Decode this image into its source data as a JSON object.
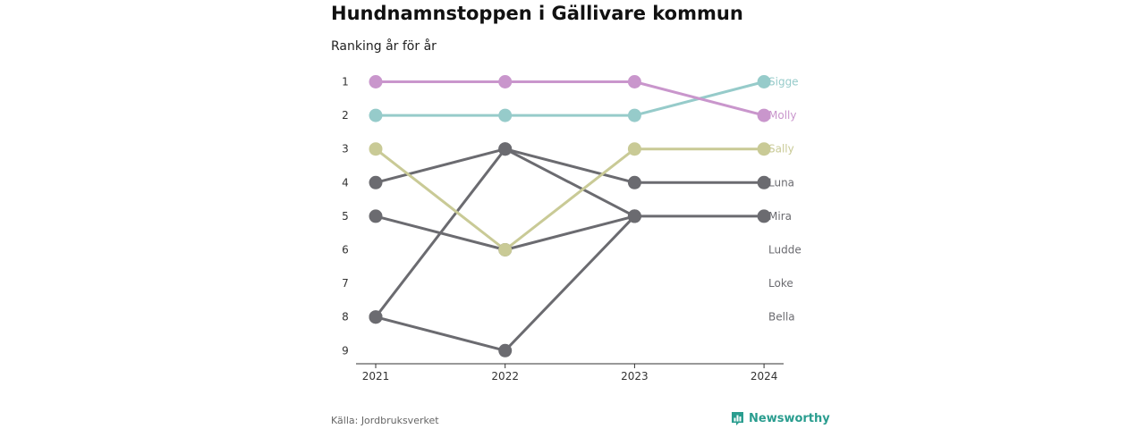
{
  "title": "Hundnamnstoppen i Gällivare kommun",
  "subtitle": "Ranking år för år",
  "source": "Källa: Jordbruksverket",
  "brand": {
    "name": "Newsworthy",
    "color": "#2a9d8f",
    "logo_icon": "chart-bubble-icon"
  },
  "chart_data": {
    "type": "line",
    "title": "Hundnamnstoppen i Gällivare kommun",
    "subtitle": "Ranking år för år",
    "x": [
      "2021",
      "2022",
      "2023",
      "2024"
    ],
    "y_ticks": [
      "1",
      "2",
      "3",
      "4",
      "5",
      "6",
      "7",
      "8",
      "9"
    ],
    "y_range": [
      1,
      9
    ],
    "y_inverted": true,
    "grid": false,
    "legend": "end-labels",
    "series": [
      {
        "name": "Sigge",
        "values": [
          2,
          2,
          2,
          1
        ],
        "color": "#96cbca"
      },
      {
        "name": "Molly",
        "values": [
          1,
          1,
          1,
          2
        ],
        "color": "#c996cc"
      },
      {
        "name": "Sally",
        "values": [
          3,
          6,
          3,
          3
        ],
        "color": "#c9ca96"
      },
      {
        "name": "Luna",
        "values": [
          4,
          3,
          4,
          4
        ],
        "color": "#6b6b70"
      },
      {
        "name": "Mira",
        "values": [
          5,
          6,
          5,
          5
        ],
        "color": "#6b6b70"
      },
      {
        "name": "Ludde",
        "values": [
          8,
          3,
          5,
          null
        ],
        "color": "#6b6b70"
      },
      {
        "name": "Loke",
        "values": [
          8,
          9,
          5,
          null
        ],
        "color": "#6b6b70"
      },
      {
        "name": "Bella",
        "values": [
          null,
          null,
          null,
          null
        ],
        "color": "#6b6b70"
      }
    ],
    "end_labels": [
      {
        "name": "Sigge",
        "rank": 1
      },
      {
        "name": "Molly",
        "rank": 2
      },
      {
        "name": "Sally",
        "rank": 3
      },
      {
        "name": "Luna",
        "rank": 4
      },
      {
        "name": "Mira",
        "rank": 5
      },
      {
        "name": "Ludde",
        "rank": 6
      },
      {
        "name": "Loke",
        "rank": 7
      },
      {
        "name": "Bella",
        "rank": 8
      }
    ]
  }
}
